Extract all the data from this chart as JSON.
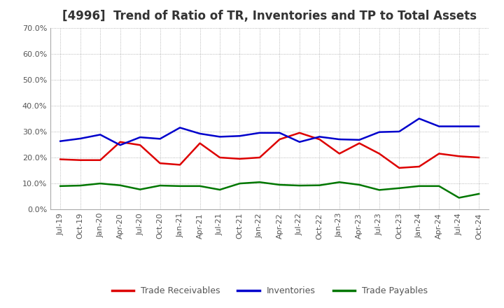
{
  "title": "[4996]  Trend of Ratio of TR, Inventories and TP to Total Assets",
  "ylim": [
    0.0,
    0.7
  ],
  "yticks": [
    0.0,
    0.1,
    0.2,
    0.3,
    0.4,
    0.5,
    0.6,
    0.7
  ],
  "x_labels": [
    "Jul-19",
    "Oct-19",
    "Jan-20",
    "Apr-20",
    "Jul-20",
    "Oct-20",
    "Jan-21",
    "Apr-21",
    "Jul-21",
    "Oct-21",
    "Jan-22",
    "Apr-22",
    "Jul-22",
    "Oct-22",
    "Jan-23",
    "Apr-23",
    "Jul-23",
    "Oct-23",
    "Jan-24",
    "Apr-24",
    "Jul-24",
    "Oct-24"
  ],
  "trade_receivables": [
    0.193,
    0.19,
    0.19,
    0.26,
    0.248,
    0.178,
    0.172,
    0.255,
    0.2,
    0.195,
    0.2,
    0.27,
    0.295,
    0.27,
    0.215,
    0.255,
    0.215,
    0.16,
    0.165,
    0.215,
    0.205,
    0.2
  ],
  "inventories": [
    0.263,
    0.273,
    0.288,
    0.248,
    0.278,
    0.272,
    0.315,
    0.292,
    0.28,
    0.283,
    0.295,
    0.295,
    0.26,
    0.28,
    0.27,
    0.268,
    0.298,
    0.3,
    0.35,
    0.32,
    0.32,
    0.32
  ],
  "trade_payables": [
    0.09,
    0.092,
    0.1,
    0.093,
    0.077,
    0.092,
    0.09,
    0.09,
    0.076,
    0.1,
    0.105,
    0.095,
    0.092,
    0.093,
    0.105,
    0.095,
    0.075,
    0.082,
    0.09,
    0.09,
    0.045,
    0.06
  ],
  "tr_color": "#dd0000",
  "inv_color": "#0000cc",
  "tp_color": "#007700",
  "background_color": "#ffffff",
  "grid_color": "#999999",
  "title_color": "#333333",
  "title_fontsize": 12,
  "tick_fontsize": 8,
  "legend_labels": [
    "Trade Receivables",
    "Inventories",
    "Trade Payables"
  ],
  "legend_fontsize": 9,
  "line_width": 1.8
}
